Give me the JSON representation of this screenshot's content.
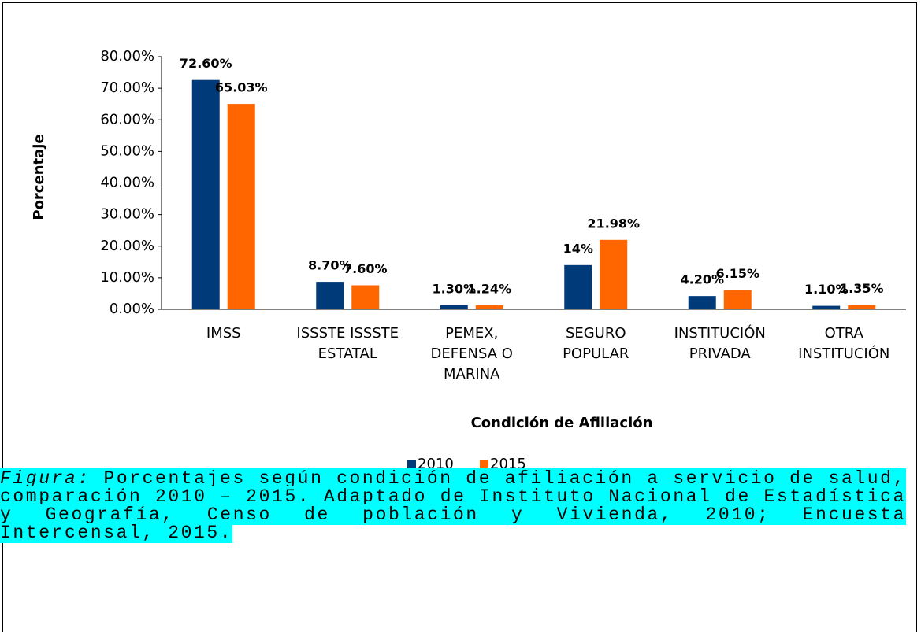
{
  "chart_data": {
    "type": "bar",
    "categories": [
      [
        "IMSS"
      ],
      [
        "ISSSTE ISSSTE",
        "ESTATAL"
      ],
      [
        "PEMEX,",
        "DEFENSA O",
        "MARINA"
      ],
      [
        "SEGURO",
        "POPULAR"
      ],
      [
        "INSTITUCIÓN",
        "PRIVADA"
      ],
      [
        "OTRA",
        "INSTITUCIÓN"
      ]
    ],
    "series": [
      {
        "name": "2010",
        "color": "#003a78",
        "values": [
          72.6,
          8.7,
          1.3,
          14,
          4.2,
          1.1
        ],
        "value_labels": [
          "72.60%",
          "8.70%",
          "1.30%",
          "14%",
          "4.20%",
          "1.10%"
        ]
      },
      {
        "name": "2015",
        "color": "#ff6600",
        "values": [
          65.03,
          7.6,
          1.24,
          21.98,
          6.15,
          1.35
        ],
        "value_labels": [
          "65.03%",
          "7.60%",
          "1.24%",
          "21.98%",
          "6.15%",
          "1.35%"
        ]
      }
    ],
    "ylabel": "Porcentaje",
    "xlabel": "Condición de Afiliación",
    "ylim": [
      0,
      80
    ],
    "yticks": [
      {
        "value": 0,
        "label": "0.00%"
      },
      {
        "value": 10,
        "label": "10.00%"
      },
      {
        "value": 20,
        "label": "20.00%"
      },
      {
        "value": 30,
        "label": "30.00%"
      },
      {
        "value": 40,
        "label": "40.00%"
      },
      {
        "value": 50,
        "label": "50.00%"
      },
      {
        "value": 60,
        "label": "60.00%"
      },
      {
        "value": 70,
        "label": "70.00%"
      },
      {
        "value": 80,
        "label": "80.00%"
      }
    ],
    "legend": "bottom"
  },
  "caption": {
    "label": "Figura:",
    "text": "Porcentajes según condición de afiliación a servicio de salud, comparación 2010 – 2015. Adaptado de Instituto Nacional de Estadística y Geografía, Censo de población y Vivienda, 2010; Encuesta Intercensal, 2015."
  }
}
